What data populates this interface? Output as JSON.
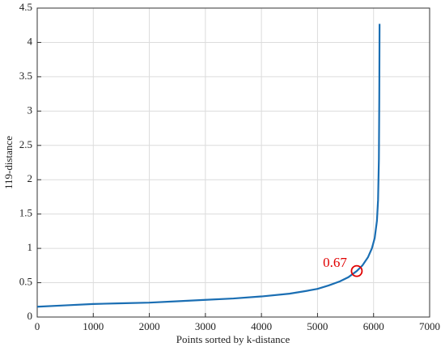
{
  "chart_data": {
    "type": "line",
    "xlabel": "Points sorted by k-distance",
    "ylabel": "119-distance",
    "x": [
      0,
      500,
      1000,
      1500,
      2000,
      2500,
      3000,
      3500,
      4000,
      4500,
      4800,
      5000,
      5200,
      5400,
      5550,
      5700,
      5800,
      5900,
      5970,
      6020,
      6060,
      6080,
      6095,
      6102,
      6107
    ],
    "series": [
      {
        "color": "#1a6eb3",
        "values": [
          0.15,
          0.17,
          0.19,
          0.2,
          0.21,
          0.23,
          0.25,
          0.27,
          0.3,
          0.34,
          0.38,
          0.41,
          0.46,
          0.52,
          0.58,
          0.67,
          0.75,
          0.87,
          1.0,
          1.15,
          1.4,
          1.7,
          2.3,
          3.2,
          4.27
        ]
      }
    ],
    "annotation": {
      "text": "0.67",
      "x": 5700,
      "y": 0.67,
      "color": "#e00000"
    },
    "xlim": [
      0,
      7000
    ],
    "xticks": [
      0,
      1000,
      2000,
      3000,
      4000,
      5000,
      6000,
      7000
    ],
    "ylim": [
      0,
      4.5
    ],
    "yticks": [
      0,
      0.5,
      1,
      1.5,
      2,
      2.5,
      3,
      3.5,
      4,
      4.5
    ],
    "grid": true
  }
}
